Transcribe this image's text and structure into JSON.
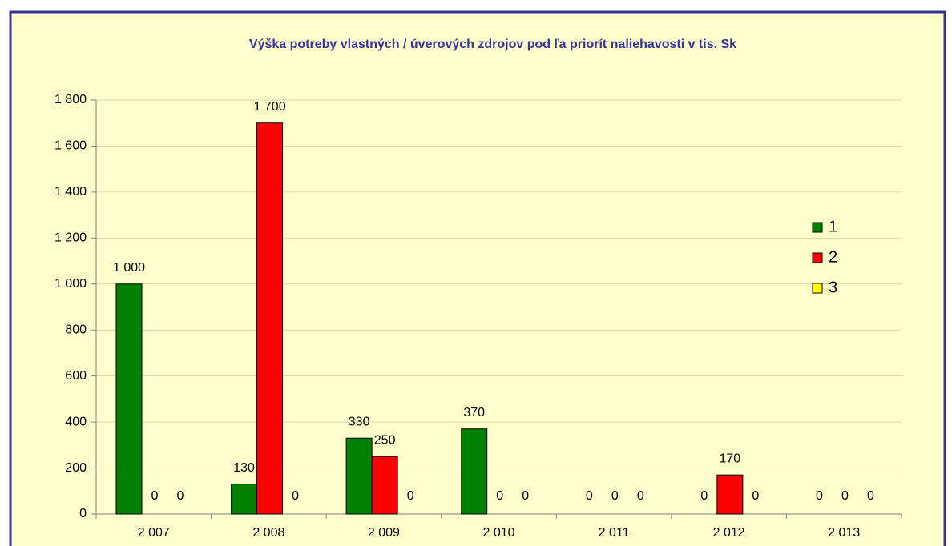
{
  "chart_data": {
    "type": "bar",
    "title": "Výška potreby vlastných / úverových zdrojov pod ľa priorít naliehavosti v tis. Sk",
    "categories": [
      "2 007",
      "2 008",
      "2 009",
      "2 010",
      "2 011",
      "2 012",
      "2 013"
    ],
    "series": [
      {
        "name": "1",
        "color": "#008000",
        "values": [
          1000,
          130,
          330,
          370,
          0,
          0,
          0
        ],
        "value_labels": [
          "1 000",
          "130",
          "330",
          "370",
          "0",
          "0",
          "0"
        ]
      },
      {
        "name": "2",
        "color": "#ff0000",
        "values": [
          0,
          1700,
          250,
          0,
          0,
          170,
          0
        ],
        "value_labels": [
          "0",
          "1 700",
          "250",
          "0",
          "0",
          "170",
          "0"
        ]
      },
      {
        "name": "3",
        "color": "#ffff00",
        "values": [
          0,
          0,
          0,
          0,
          0,
          0,
          0
        ],
        "value_labels": [
          "0",
          "0",
          "0",
          "0",
          "0",
          "0",
          "0"
        ]
      }
    ],
    "ylim": [
      0,
      1800
    ],
    "yticks": [
      0,
      200,
      400,
      600,
      800,
      {
        "value": 1000,
        "label": "1 000"
      },
      {
        "value": 1200,
        "label": "1 200"
      },
      {
        "value": 1400,
        "label": "1 400"
      },
      {
        "value": 1600,
        "label": "1 600"
      },
      {
        "value": 1800,
        "label": "1 800"
      }
    ],
    "grid": true,
    "legend": "right"
  }
}
